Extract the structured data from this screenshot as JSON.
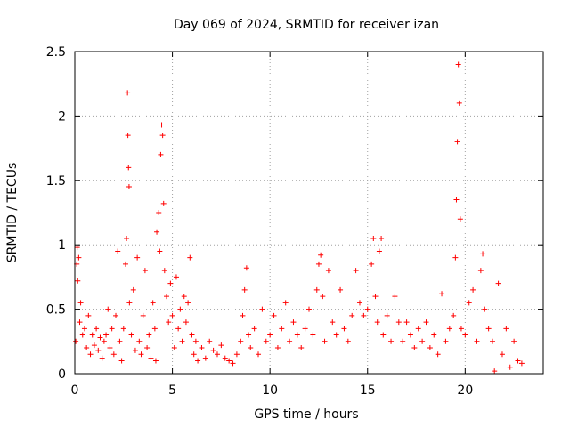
{
  "chart_data": {
    "type": "scatter",
    "title": "Day 069 of 2024, SRMTID for receiver izan",
    "xlabel": "GPS time / hours",
    "ylabel": "SRMTID / TECUs",
    "xlim": [
      0,
      24
    ],
    "ylim": [
      0,
      2.5
    ],
    "xticks": [
      0,
      5,
      10,
      15,
      20
    ],
    "xtick_labels": [
      "0",
      "5",
      "10",
      "15",
      "20"
    ],
    "yticks": [
      0,
      0.5,
      1,
      1.5,
      2,
      2.5
    ],
    "ytick_labels": [
      "0",
      "0.5",
      "1",
      "1.5",
      "2",
      "2.5"
    ],
    "grid": true,
    "marker": "+",
    "series": [
      {
        "name": "SRMTID",
        "color": "#ff0000",
        "points": [
          [
            0.05,
            0.25
          ],
          [
            0.1,
            0.85
          ],
          [
            0.12,
            0.98
          ],
          [
            0.15,
            0.72
          ],
          [
            0.2,
            0.9
          ],
          [
            0.25,
            0.4
          ],
          [
            0.3,
            0.55
          ],
          [
            0.4,
            0.3
          ],
          [
            0.5,
            0.35
          ],
          [
            0.6,
            0.2
          ],
          [
            0.7,
            0.45
          ],
          [
            0.8,
            0.15
          ],
          [
            0.9,
            0.3
          ],
          [
            1.0,
            0.22
          ],
          [
            1.1,
            0.35
          ],
          [
            1.2,
            0.18
          ],
          [
            1.3,
            0.28
          ],
          [
            1.4,
            0.12
          ],
          [
            1.5,
            0.25
          ],
          [
            1.6,
            0.3
          ],
          [
            1.7,
            0.5
          ],
          [
            1.8,
            0.2
          ],
          [
            1.9,
            0.35
          ],
          [
            2.0,
            0.15
          ],
          [
            2.1,
            0.45
          ],
          [
            2.2,
            0.95
          ],
          [
            2.3,
            0.25
          ],
          [
            2.4,
            0.1
          ],
          [
            2.5,
            0.35
          ],
          [
            2.6,
            0.85
          ],
          [
            2.65,
            1.05
          ],
          [
            2.7,
            2.18
          ],
          [
            2.72,
            1.85
          ],
          [
            2.75,
            1.6
          ],
          [
            2.78,
            1.45
          ],
          [
            2.8,
            0.55
          ],
          [
            2.9,
            0.3
          ],
          [
            3.0,
            0.65
          ],
          [
            3.1,
            0.18
          ],
          [
            3.2,
            0.9
          ],
          [
            3.3,
            0.25
          ],
          [
            3.4,
            0.15
          ],
          [
            3.5,
            0.45
          ],
          [
            3.6,
            0.8
          ],
          [
            3.7,
            0.2
          ],
          [
            3.8,
            0.3
          ],
          [
            3.9,
            0.12
          ],
          [
            4.0,
            0.55
          ],
          [
            4.1,
            0.35
          ],
          [
            4.15,
            0.1
          ],
          [
            4.2,
            1.1
          ],
          [
            4.3,
            1.25
          ],
          [
            4.35,
            0.95
          ],
          [
            4.4,
            1.7
          ],
          [
            4.45,
            1.93
          ],
          [
            4.5,
            1.85
          ],
          [
            4.55,
            1.32
          ],
          [
            4.6,
            0.8
          ],
          [
            4.7,
            0.6
          ],
          [
            4.8,
            0.4
          ],
          [
            4.9,
            0.7
          ],
          [
            5.0,
            0.45
          ],
          [
            5.1,
            0.2
          ],
          [
            5.2,
            0.75
          ],
          [
            5.3,
            0.35
          ],
          [
            5.4,
            0.5
          ],
          [
            5.5,
            0.25
          ],
          [
            5.6,
            0.6
          ],
          [
            5.7,
            0.4
          ],
          [
            5.8,
            0.55
          ],
          [
            5.9,
            0.9
          ],
          [
            6.0,
            0.3
          ],
          [
            6.1,
            0.15
          ],
          [
            6.2,
            0.25
          ],
          [
            6.3,
            0.1
          ],
          [
            6.5,
            0.2
          ],
          [
            6.7,
            0.12
          ],
          [
            6.9,
            0.25
          ],
          [
            7.1,
            0.18
          ],
          [
            7.3,
            0.15
          ],
          [
            7.5,
            0.22
          ],
          [
            7.7,
            0.12
          ],
          [
            7.9,
            0.1
          ],
          [
            8.1,
            0.08
          ],
          [
            8.3,
            0.15
          ],
          [
            8.5,
            0.25
          ],
          [
            8.6,
            0.45
          ],
          [
            8.7,
            0.65
          ],
          [
            8.8,
            0.82
          ],
          [
            8.9,
            0.3
          ],
          [
            9.0,
            0.2
          ],
          [
            9.2,
            0.35
          ],
          [
            9.4,
            0.15
          ],
          [
            9.6,
            0.5
          ],
          [
            9.8,
            0.25
          ],
          [
            10.0,
            0.3
          ],
          [
            10.2,
            0.45
          ],
          [
            10.4,
            0.2
          ],
          [
            10.6,
            0.35
          ],
          [
            10.8,
            0.55
          ],
          [
            11.0,
            0.25
          ],
          [
            11.2,
            0.4
          ],
          [
            11.4,
            0.3
          ],
          [
            11.6,
            0.2
          ],
          [
            11.8,
            0.35
          ],
          [
            12.0,
            0.5
          ],
          [
            12.2,
            0.3
          ],
          [
            12.4,
            0.65
          ],
          [
            12.5,
            0.85
          ],
          [
            12.6,
            0.92
          ],
          [
            12.7,
            0.6
          ],
          [
            12.8,
            0.25
          ],
          [
            13.0,
            0.8
          ],
          [
            13.2,
            0.4
          ],
          [
            13.4,
            0.3
          ],
          [
            13.6,
            0.65
          ],
          [
            13.8,
            0.35
          ],
          [
            14.0,
            0.25
          ],
          [
            14.2,
            0.45
          ],
          [
            14.4,
            0.8
          ],
          [
            14.6,
            0.55
          ],
          [
            14.8,
            0.45
          ],
          [
            15.0,
            0.5
          ],
          [
            15.2,
            0.85
          ],
          [
            15.3,
            1.05
          ],
          [
            15.4,
            0.6
          ],
          [
            15.5,
            0.4
          ],
          [
            15.6,
            0.95
          ],
          [
            15.7,
            1.05
          ],
          [
            15.8,
            0.3
          ],
          [
            16.0,
            0.45
          ],
          [
            16.2,
            0.25
          ],
          [
            16.4,
            0.6
          ],
          [
            16.6,
            0.4
          ],
          [
            16.8,
            0.25
          ],
          [
            17.0,
            0.4
          ],
          [
            17.2,
            0.3
          ],
          [
            17.4,
            0.2
          ],
          [
            17.6,
            0.35
          ],
          [
            17.8,
            0.25
          ],
          [
            18.0,
            0.4
          ],
          [
            18.2,
            0.2
          ],
          [
            18.4,
            0.3
          ],
          [
            18.6,
            0.15
          ],
          [
            18.8,
            0.62
          ],
          [
            19.0,
            0.25
          ],
          [
            19.2,
            0.35
          ],
          [
            19.4,
            0.45
          ],
          [
            19.5,
            0.9
          ],
          [
            19.55,
            1.35
          ],
          [
            19.6,
            1.8
          ],
          [
            19.65,
            2.4
          ],
          [
            19.7,
            2.1
          ],
          [
            19.75,
            1.2
          ],
          [
            19.8,
            0.35
          ],
          [
            20.0,
            0.3
          ],
          [
            20.2,
            0.55
          ],
          [
            20.4,
            0.65
          ],
          [
            20.6,
            0.25
          ],
          [
            20.8,
            0.8
          ],
          [
            20.9,
            0.93
          ],
          [
            21.0,
            0.5
          ],
          [
            21.2,
            0.35
          ],
          [
            21.4,
            0.25
          ],
          [
            21.5,
            0.02
          ],
          [
            21.7,
            0.7
          ],
          [
            21.9,
            0.15
          ],
          [
            22.1,
            0.35
          ],
          [
            22.3,
            0.05
          ],
          [
            22.5,
            0.25
          ],
          [
            22.7,
            0.1
          ],
          [
            22.9,
            0.08
          ]
        ]
      }
    ]
  }
}
